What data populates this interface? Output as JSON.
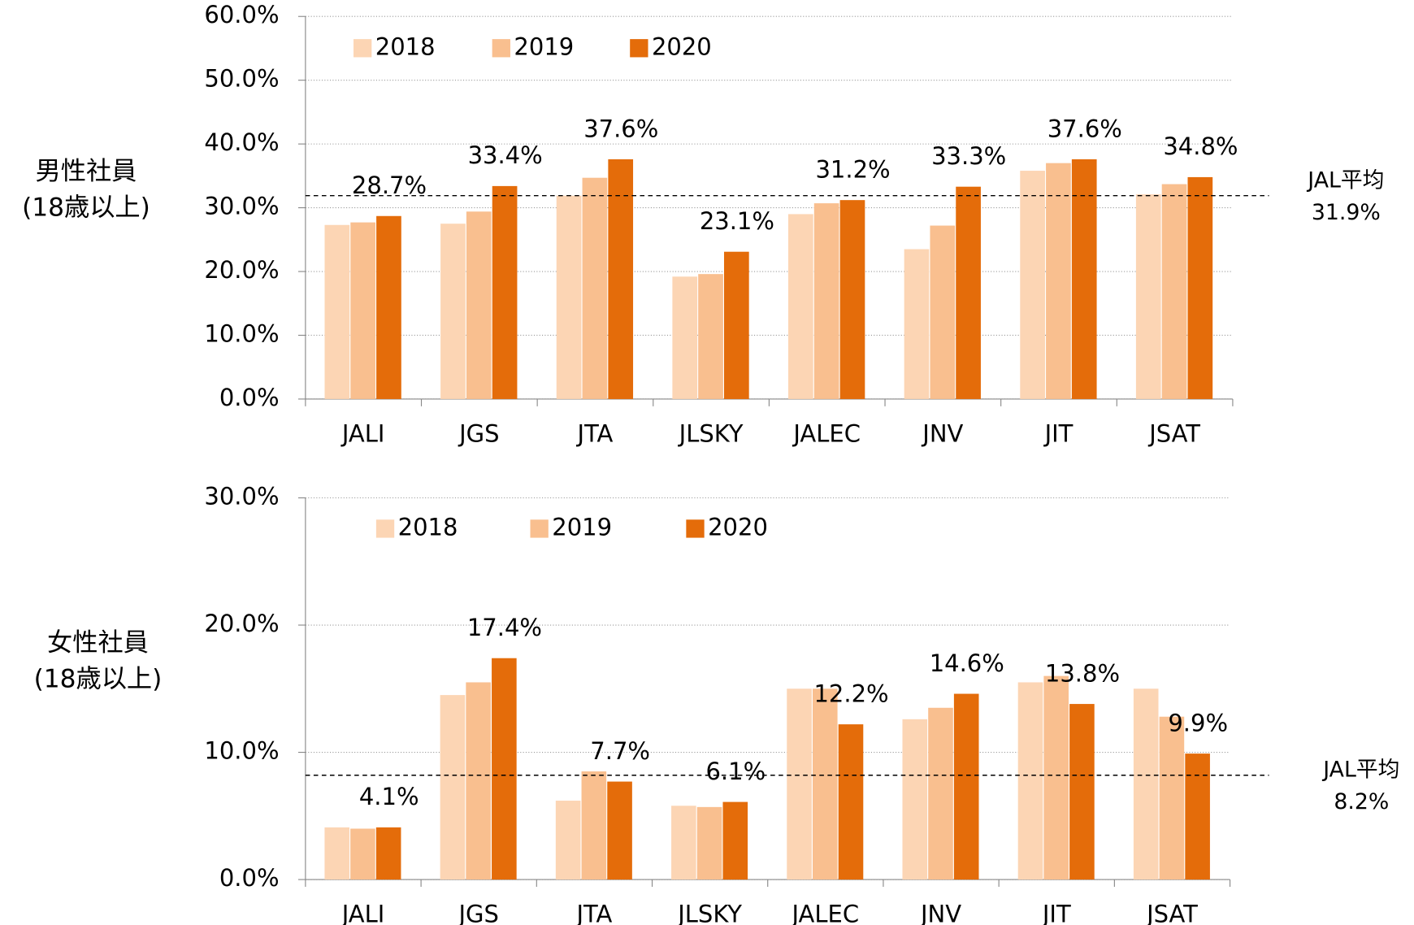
{
  "chart_data": [
    {
      "type": "bar",
      "ylabel": [
        "男性社員",
        "(18歳以上)"
      ],
      "categories": [
        "JALI",
        "JGS",
        "JTA",
        "JLSKY",
        "JALEC",
        "JNV",
        "JIT",
        "JSAT"
      ],
      "series": [
        {
          "name": "2018",
          "color": "#fcd5b4",
          "values": [
            27.3,
            27.5,
            31.9,
            19.2,
            29.0,
            23.5,
            35.8,
            32.1
          ]
        },
        {
          "name": "2019",
          "color": "#f9bf8f",
          "values": [
            27.7,
            29.4,
            34.7,
            19.6,
            30.7,
            27.2,
            37.0,
            33.7
          ]
        },
        {
          "name": "2020",
          "color": "#e46c0a",
          "values": [
            28.7,
            33.4,
            37.6,
            23.1,
            31.2,
            33.3,
            37.6,
            34.8
          ],
          "value_labels": [
            "28.7%",
            "33.4%",
            "37.6%",
            "23.1%",
            "31.2%",
            "33.3%",
            "37.6%",
            "34.8%"
          ]
        }
      ],
      "ylim": [
        0,
        60
      ],
      "yticks": [
        {
          "value": 0,
          "label": "0.0%"
        },
        {
          "value": 10,
          "label": "10.0%"
        },
        {
          "value": 20,
          "label": "20.0%"
        },
        {
          "value": 30,
          "label": "30.0%"
        },
        {
          "value": 40,
          "label": "40.0%"
        },
        {
          "value": 50,
          "label": "50.0%"
        },
        {
          "value": 60,
          "label": "60.0%"
        }
      ],
      "grid": true,
      "reference": {
        "label": "JAL平均",
        "value": 31.9,
        "value_label": "31.9%"
      }
    },
    {
      "type": "bar",
      "ylabel": [
        "女性社員",
        "(18歳以上)"
      ],
      "categories": [
        "JALI",
        "JGS",
        "JTA",
        "JLSKY",
        "JALEC",
        "JNV",
        "JIT",
        "JSAT"
      ],
      "series": [
        {
          "name": "2018",
          "color": "#fcd5b4",
          "values": [
            4.1,
            14.5,
            6.2,
            5.8,
            15.0,
            12.6,
            15.5,
            15.0
          ]
        },
        {
          "name": "2019",
          "color": "#f9bf8f",
          "values": [
            4.0,
            15.5,
            8.5,
            5.7,
            15.0,
            13.5,
            16.0,
            12.8
          ]
        },
        {
          "name": "2020",
          "color": "#e46c0a",
          "values": [
            4.1,
            17.4,
            7.7,
            6.1,
            12.2,
            14.6,
            13.8,
            9.9
          ],
          "value_labels": [
            "4.1%",
            "17.4%",
            "7.7%",
            "6.1%",
            "12.2%",
            "14.6%",
            "13.8%",
            "9.9%"
          ]
        }
      ],
      "ylim": [
        0,
        30
      ],
      "yticks": [
        {
          "value": 0,
          "label": "0.0%"
        },
        {
          "value": 10,
          "label": "10.0%"
        },
        {
          "value": 20,
          "label": "20.0%"
        },
        {
          "value": 30,
          "label": "30.0%"
        }
      ],
      "grid": true,
      "reference": {
        "label": "JAL平均",
        "value": 8.2,
        "value_label": "8.2%"
      }
    }
  ]
}
